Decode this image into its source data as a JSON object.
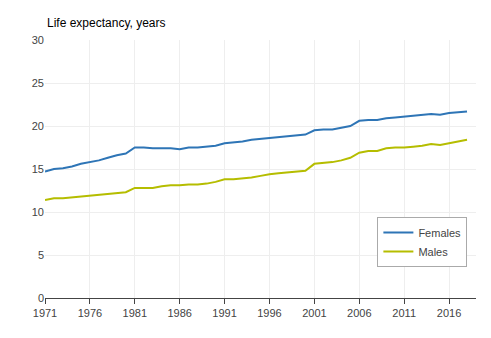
{
  "chart_data": {
    "type": "line",
    "ylabel": "Life expectancy, years",
    "x": [
      1971,
      1972,
      1973,
      1974,
      1975,
      1976,
      1977,
      1978,
      1979,
      1980,
      1981,
      1982,
      1983,
      1984,
      1985,
      1986,
      1987,
      1988,
      1989,
      1990,
      1991,
      1992,
      1993,
      1994,
      1995,
      1996,
      1997,
      1998,
      1999,
      2000,
      2001,
      2002,
      2003,
      2004,
      2005,
      2006,
      2007,
      2008,
      2009,
      2010,
      2011,
      2012,
      2013,
      2014,
      2015,
      2016,
      2017,
      2018
    ],
    "series": [
      {
        "name": "Females",
        "color": "#2e75b6",
        "values": [
          14.7,
          15.0,
          15.1,
          15.3,
          15.6,
          15.8,
          16.0,
          16.3,
          16.6,
          16.8,
          17.5,
          17.5,
          17.4,
          17.4,
          17.4,
          17.3,
          17.5,
          17.5,
          17.6,
          17.7,
          18.0,
          18.1,
          18.2,
          18.4,
          18.5,
          18.6,
          18.7,
          18.8,
          18.9,
          19.0,
          19.5,
          19.6,
          19.6,
          19.8,
          20.0,
          20.6,
          20.7,
          20.7,
          20.9,
          21.0,
          21.1,
          21.2,
          21.3,
          21.4,
          21.3,
          21.5,
          21.6,
          21.7
        ]
      },
      {
        "name": "Males",
        "color": "#b5bd00",
        "values": [
          11.4,
          11.6,
          11.6,
          11.7,
          11.8,
          11.9,
          12.0,
          12.1,
          12.2,
          12.3,
          12.8,
          12.8,
          12.8,
          13.0,
          13.1,
          13.1,
          13.2,
          13.2,
          13.3,
          13.5,
          13.8,
          13.8,
          13.9,
          14.0,
          14.2,
          14.4,
          14.5,
          14.6,
          14.7,
          14.8,
          15.6,
          15.7,
          15.8,
          16.0,
          16.3,
          16.9,
          17.1,
          17.1,
          17.4,
          17.5,
          17.5,
          17.6,
          17.7,
          17.9,
          17.8,
          18.0,
          18.2,
          18.4
        ]
      }
    ],
    "xlim": [
      1971,
      2019
    ],
    "xticks": [
      1971,
      1976,
      1981,
      1986,
      1991,
      1996,
      2001,
      2006,
      2011,
      2016
    ],
    "ylim": [
      0,
      30
    ],
    "yticks": [
      0,
      5,
      10,
      15,
      20,
      25,
      30
    ],
    "grid": true,
    "legend": "lower right"
  }
}
